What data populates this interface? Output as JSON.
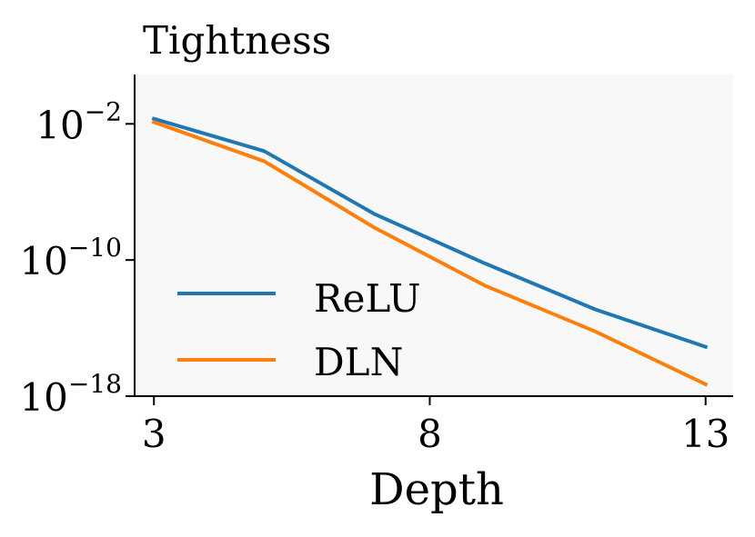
{
  "chart_data": {
    "type": "line",
    "title": "Tightness",
    "xlabel": "Depth",
    "ylabel": "",
    "yscale": "log",
    "x": [
      3,
      5,
      7,
      9,
      11,
      13
    ],
    "xlim": [
      2.65,
      13.5
    ],
    "xticks": [
      3,
      8,
      13
    ],
    "xtick_labels": [
      "3",
      "8",
      "13"
    ],
    "ylim_exp": [
      -18,
      0.9
    ],
    "yticks": [
      {
        "exp": -2,
        "base": "10",
        "power": "−2"
      },
      {
        "exp": -10,
        "base": "10",
        "power": "−10"
      },
      {
        "exp": -18,
        "base": "10",
        "power": "−18"
      }
    ],
    "series": [
      {
        "name": "ReLU",
        "color": "#1f77b4",
        "log10_values": [
          -1.7,
          -3.6,
          -7.3,
          -10.2,
          -12.9,
          -15.1
        ]
      },
      {
        "name": "DLN",
        "color": "#ff7f0e",
        "log10_values": [
          -1.9,
          -4.2,
          -8.1,
          -11.5,
          -14.2,
          -17.3
        ]
      }
    ],
    "legend_position": "lower-left",
    "plot_background": "#f8f8f8"
  }
}
